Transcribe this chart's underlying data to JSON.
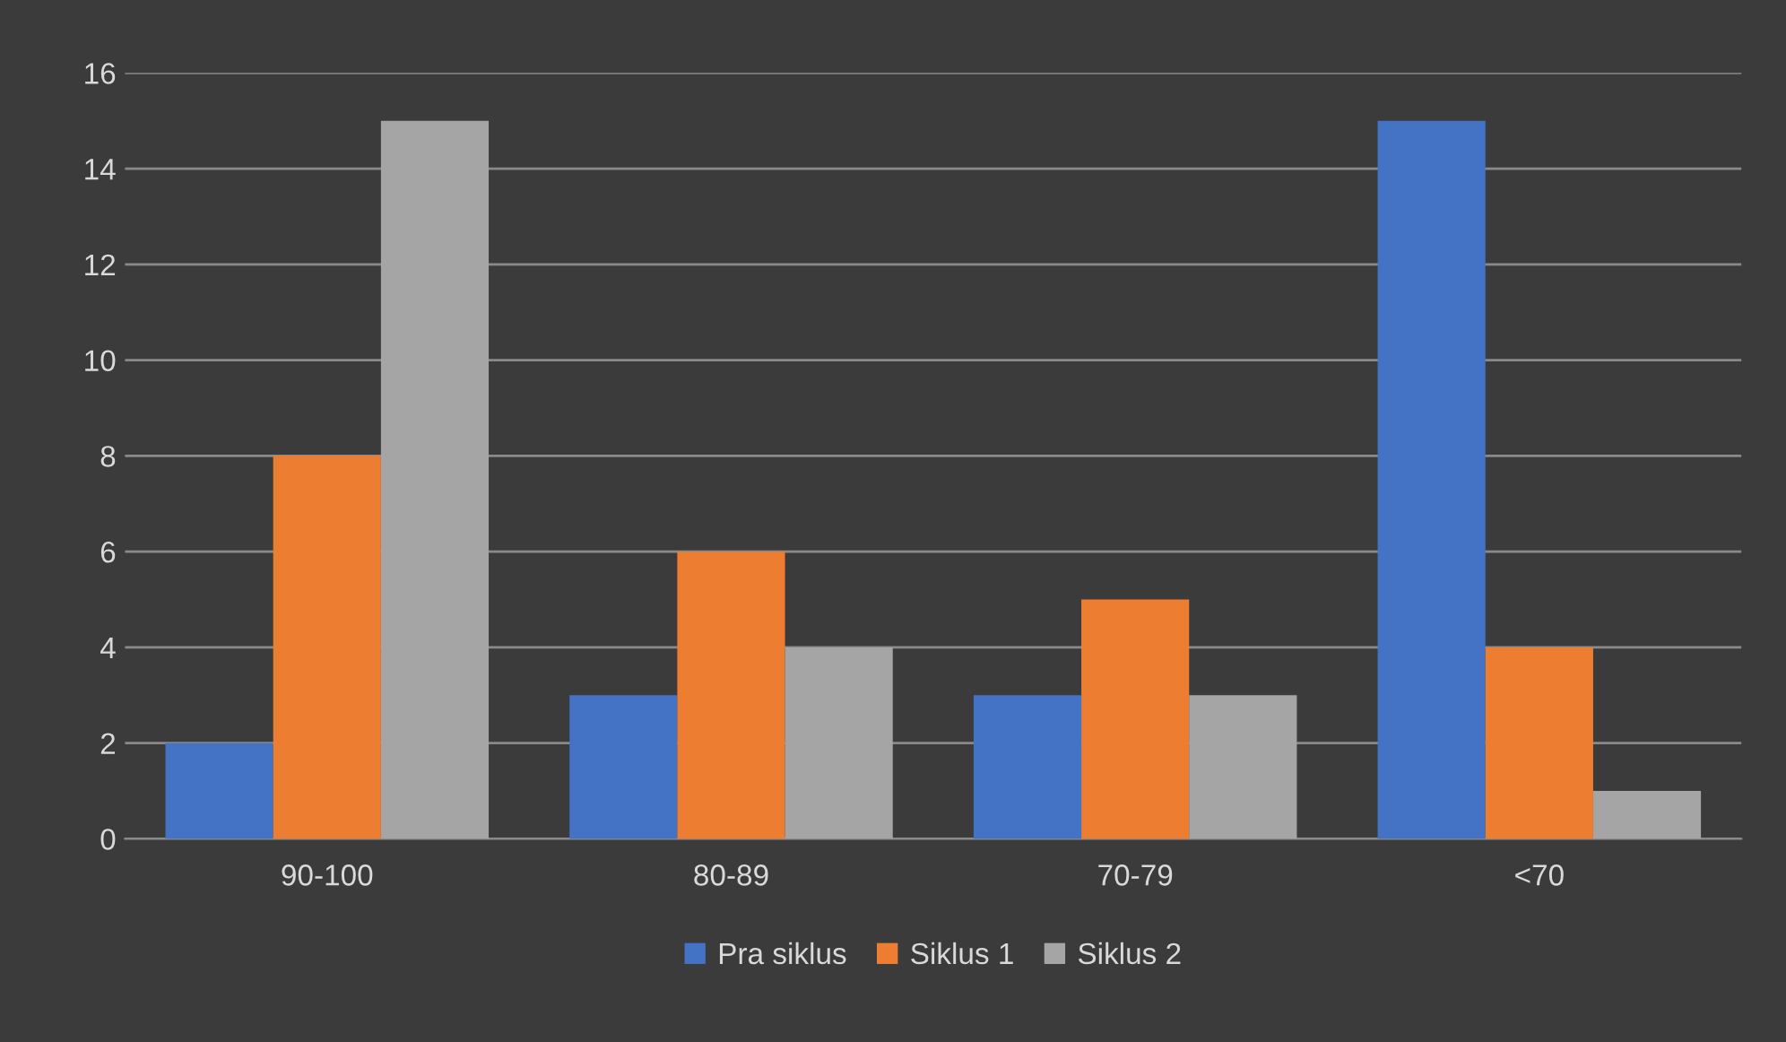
{
  "chart_data": {
    "type": "bar",
    "categories": [
      "90-100",
      "80-89",
      "70-79",
      "<70"
    ],
    "series": [
      {
        "name": "Pra siklus",
        "color": "#4472c4",
        "values": [
          2,
          3,
          3,
          15
        ]
      },
      {
        "name": "Siklus 1",
        "color": "#ed7d31",
        "values": [
          8,
          6,
          5,
          4
        ]
      },
      {
        "name": "Siklus 2",
        "color": "#a5a5a5",
        "values": [
          15,
          4,
          3,
          1
        ]
      }
    ],
    "ylim": [
      0,
      16
    ],
    "yticks": [
      0,
      2,
      4,
      6,
      8,
      10,
      12,
      14,
      16
    ],
    "grid": "y",
    "legend": "bottom"
  }
}
